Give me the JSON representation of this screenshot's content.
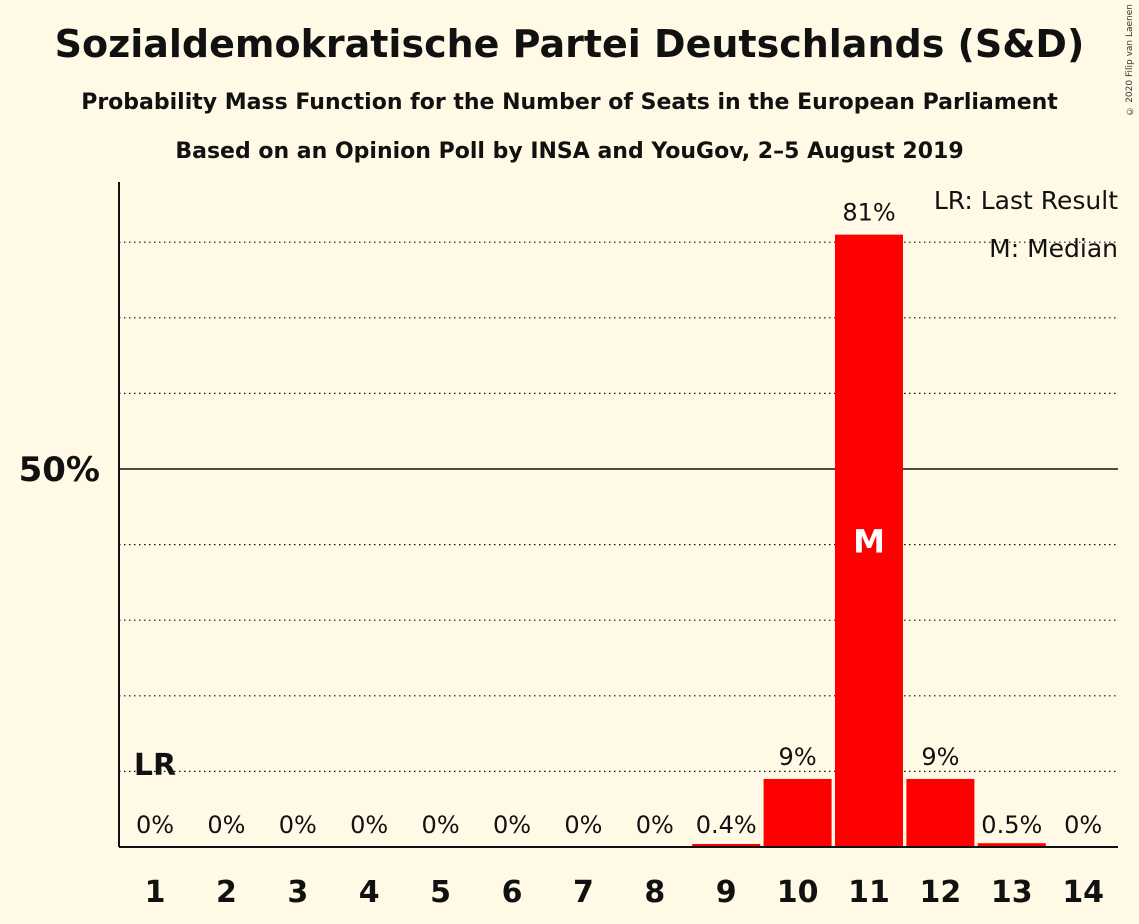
{
  "title": "Sozialdemokratische Partei Deutschlands (S&D)",
  "subtitle": "Probability Mass Function for the Number of Seats in the European Parliament",
  "subtitle2": "Based on an Opinion Poll by INSA and YouGov, 2–5 August 2019",
  "copyright": "© 2020 Filip van Laenen",
  "legend": {
    "last_result": "LR: Last Result",
    "median": "M: Median"
  },
  "colors": {
    "bar": "#ff0000",
    "background": "#fff9e6",
    "axis": "#111111"
  },
  "chart_data": {
    "type": "bar",
    "categories": [
      "1",
      "2",
      "3",
      "4",
      "5",
      "6",
      "7",
      "8",
      "9",
      "10",
      "11",
      "12",
      "13",
      "14"
    ],
    "values": [
      0,
      0,
      0,
      0,
      0,
      0,
      0,
      0,
      0.4,
      9,
      81,
      9,
      0.5,
      0
    ],
    "value_labels": [
      "0%",
      "0%",
      "0%",
      "0%",
      "0%",
      "0%",
      "0%",
      "0%",
      "0.4%",
      "9%",
      "81%",
      "9%",
      "0.5%",
      "0%"
    ],
    "ylim": [
      0,
      88
    ],
    "y_tick_label": "50%",
    "y_tick_value": 50,
    "gridlines": [
      10,
      20,
      30,
      40,
      60,
      70,
      80
    ],
    "last_result_category": "1",
    "last_result_label": "LR",
    "median_category": "11",
    "median_label": "M",
    "legend_position": "top-right"
  }
}
